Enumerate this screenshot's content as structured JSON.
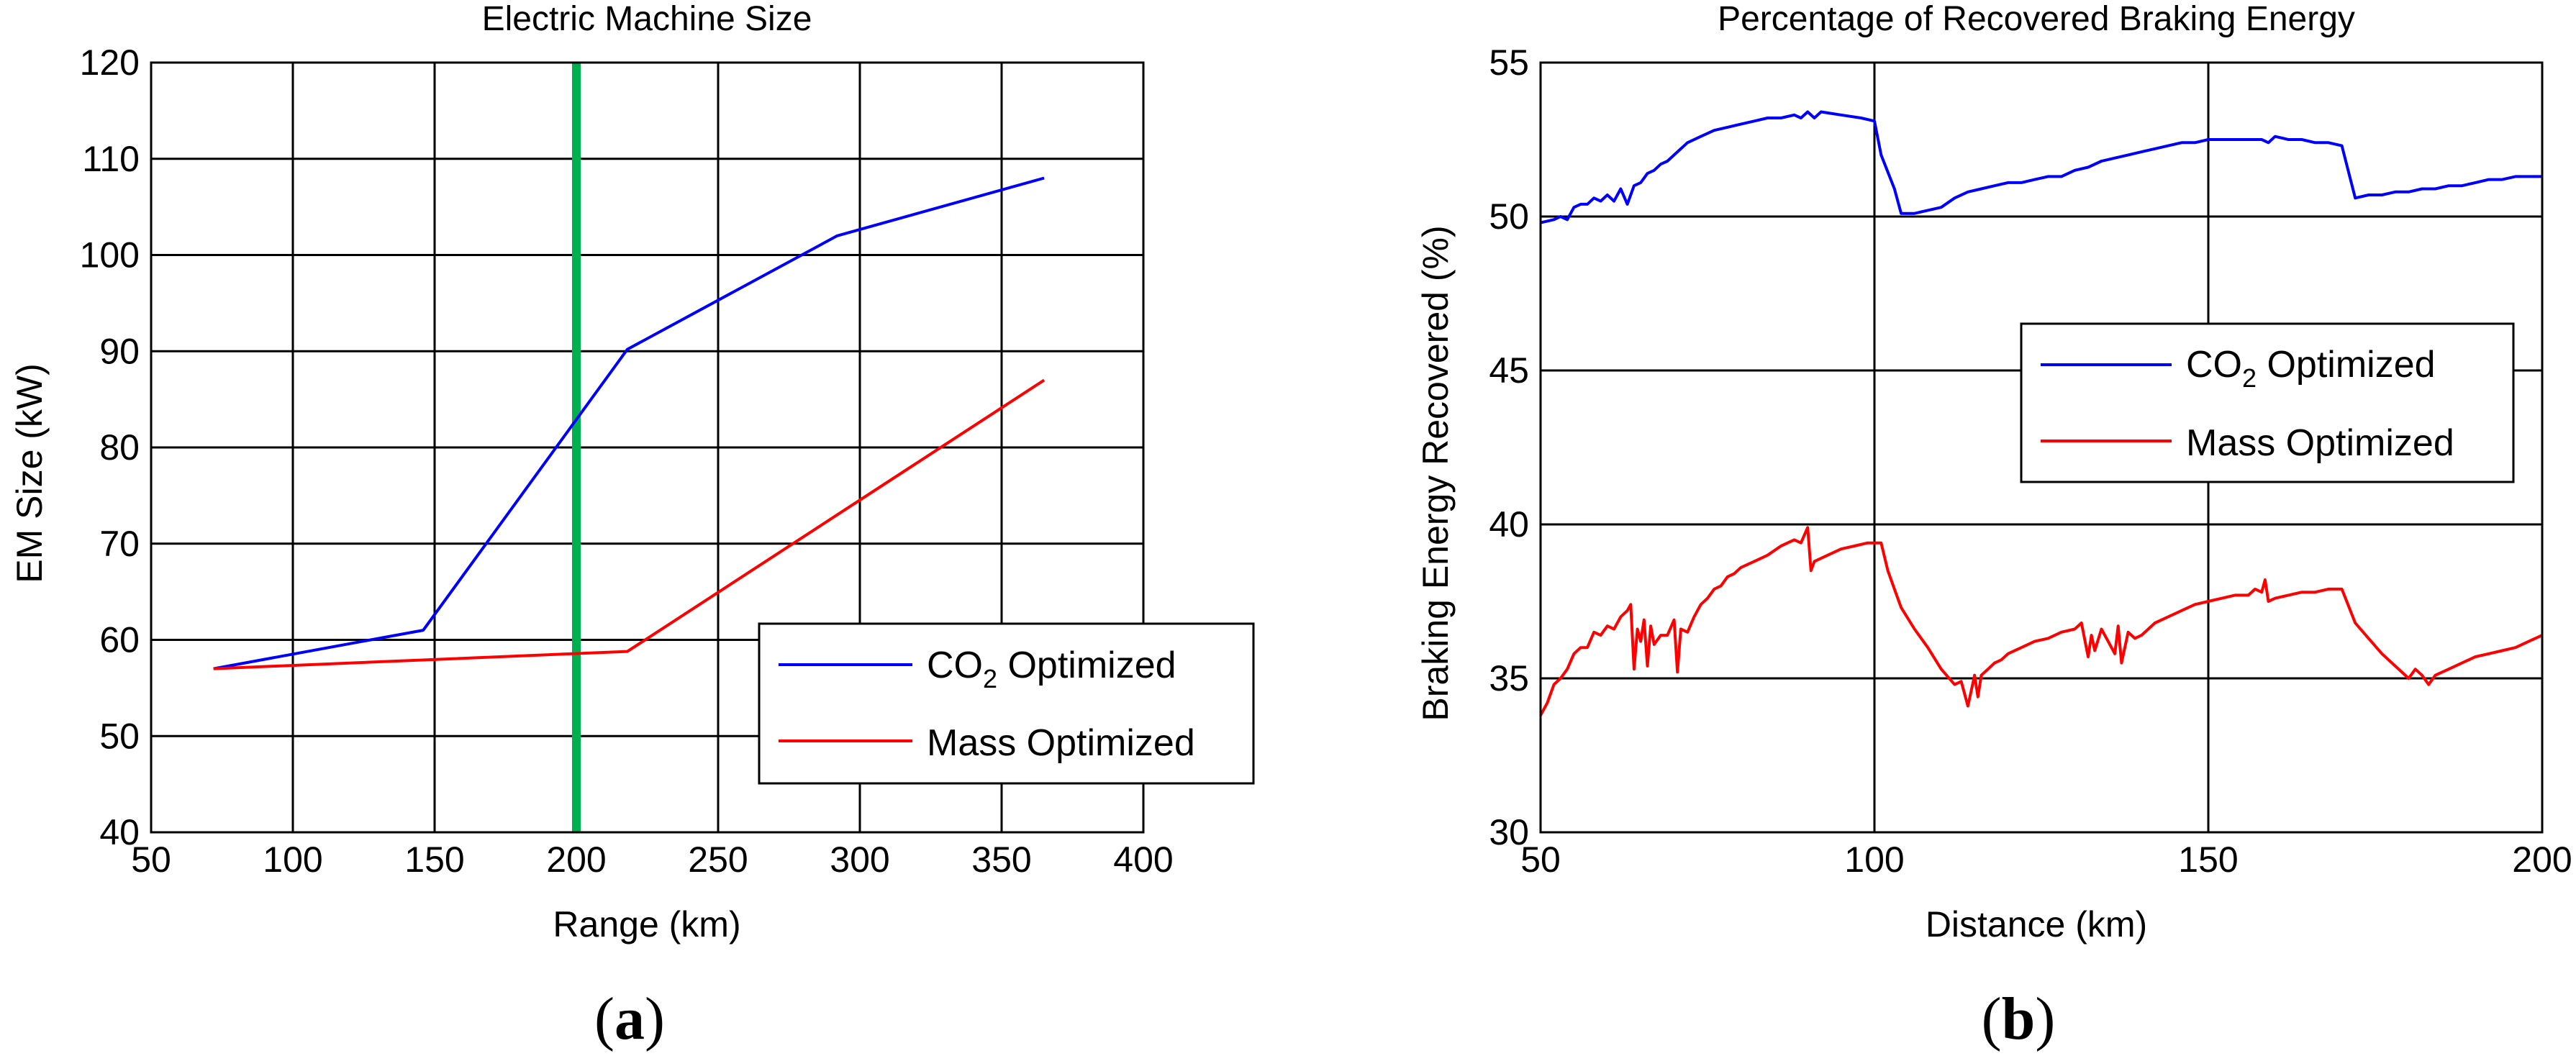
{
  "chart_data": [
    {
      "type": "line",
      "title": "Electric Machine Size",
      "xlabel": "Range (km)",
      "ylabel": "EM Size (kW)",
      "xlim": [
        50,
        400
      ],
      "ylim": [
        40,
        120
      ],
      "xticks": [
        50,
        100,
        150,
        200,
        250,
        300,
        350,
        400
      ],
      "yticks": [
        40,
        50,
        60,
        70,
        80,
        90,
        100,
        110,
        120
      ],
      "grid": true,
      "caption": {
        "open": "(",
        "letter": "a",
        "close": ")"
      },
      "legend": {
        "position": "bottom-right",
        "entries": [
          {
            "prefix": "CO",
            "subscript": "2",
            "suffix": " Optimized",
            "color": "#0000ff"
          },
          {
            "prefix": "Mass Optimized",
            "subscript": "",
            "suffix": "",
            "color": "#ff0000"
          }
        ]
      },
      "annotations": [
        {
          "type": "vertical-line",
          "x": 200,
          "color": "#00b050"
        }
      ],
      "series": [
        {
          "name": "CO2 Optimized",
          "color": "#0000ff",
          "x": [
            72,
            146,
            218,
            292,
            365
          ],
          "y": [
            57,
            61,
            90.2,
            102,
            108
          ]
        },
        {
          "name": "Mass Optimized",
          "color": "#ff0000",
          "x": [
            72,
            218,
            365
          ],
          "y": [
            57,
            58.8,
            87
          ]
        }
      ]
    },
    {
      "type": "line",
      "title": "Percentage of Recovered Braking Energy",
      "xlabel": "Distance (km)",
      "ylabel": "Braking Energy Recovered (%)",
      "xlim": [
        50,
        200
      ],
      "ylim": [
        30,
        55
      ],
      "xticks": [
        50,
        100,
        150,
        200
      ],
      "yticks": [
        30,
        35,
        40,
        45,
        50,
        55
      ],
      "grid": true,
      "caption": {
        "open": "(",
        "letter": "b",
        "close": ")"
      },
      "legend": {
        "position": "center-right",
        "entries": [
          {
            "prefix": "CO",
            "subscript": "2",
            "suffix": " Optimized",
            "color": "#0000ff"
          },
          {
            "prefix": "Mass Optimized",
            "subscript": "",
            "suffix": "",
            "color": "#ff0000"
          }
        ]
      },
      "series": [
        {
          "name": "CO2 Optimized",
          "color": "#0000ff",
          "x": [
            50,
            52,
            53,
            54,
            55,
            56,
            57,
            58,
            59,
            60,
            61,
            62,
            63,
            64,
            65,
            66,
            67,
            68,
            69,
            70,
            72,
            74,
            76,
            78,
            80,
            82,
            84,
            86,
            88,
            89,
            90,
            91,
            92,
            95,
            98,
            100,
            101,
            103,
            104,
            106,
            108,
            110,
            112,
            114,
            116,
            118,
            120,
            122,
            124,
            126,
            128,
            130,
            132,
            134,
            136,
            138,
            140,
            142,
            144,
            146,
            148,
            150,
            152,
            154,
            156,
            158,
            159,
            160,
            162,
            164,
            166,
            168,
            170,
            172,
            174,
            176,
            178,
            180,
            182,
            184,
            186,
            188,
            190,
            192,
            194,
            196,
            198,
            200
          ],
          "y": [
            49.8,
            49.9,
            50.0,
            49.9,
            50.3,
            50.4,
            50.4,
            50.6,
            50.5,
            50.7,
            50.5,
            50.9,
            50.4,
            51.0,
            51.1,
            51.4,
            51.5,
            51.7,
            51.8,
            52.0,
            52.4,
            52.6,
            52.8,
            52.9,
            53.0,
            53.1,
            53.2,
            53.2,
            53.3,
            53.2,
            53.4,
            53.2,
            53.4,
            53.3,
            53.2,
            53.1,
            52.0,
            50.9,
            50.1,
            50.1,
            50.2,
            50.3,
            50.6,
            50.8,
            50.9,
            51.0,
            51.1,
            51.1,
            51.2,
            51.3,
            51.3,
            51.5,
            51.6,
            51.8,
            51.9,
            52.0,
            52.1,
            52.2,
            52.3,
            52.4,
            52.4,
            52.5,
            52.5,
            52.5,
            52.5,
            52.5,
            52.4,
            52.6,
            52.5,
            52.5,
            52.4,
            52.4,
            52.3,
            50.6,
            50.7,
            50.7,
            50.8,
            50.8,
            50.9,
            50.9,
            51.0,
            51.0,
            51.1,
            51.2,
            51.2,
            51.3,
            51.3,
            51.3
          ]
        },
        {
          "name": "Mass Optimized",
          "color": "#ff0000",
          "x": [
            50,
            51,
            52,
            53,
            54,
            55,
            56,
            57,
            58,
            59,
            60,
            61,
            62,
            63,
            63.5,
            64,
            64.5,
            65,
            65.5,
            66,
            66.5,
            67,
            68,
            69,
            70,
            70.5,
            71,
            72,
            73,
            74,
            75,
            76,
            77,
            78,
            79,
            80,
            82,
            84,
            86,
            88,
            89,
            90,
            90.5,
            91,
            93,
            95,
            97,
            99,
            100,
            101,
            102,
            103,
            104,
            106,
            108,
            110,
            112,
            113,
            114,
            115,
            115.5,
            116,
            117,
            118,
            119,
            120,
            122,
            124,
            126,
            128,
            130,
            131,
            132,
            132.5,
            133,
            134,
            135,
            136,
            136.5,
            137,
            138,
            139,
            140,
            142,
            144,
            146,
            148,
            150,
            152,
            154,
            156,
            157,
            158,
            158.5,
            159,
            160,
            162,
            164,
            166,
            168,
            170,
            172,
            174,
            176,
            178,
            180,
            181,
            182,
            183,
            184,
            186,
            188,
            190,
            192,
            194,
            196,
            198,
            200
          ],
          "y": [
            33.8,
            34.2,
            34.8,
            35.0,
            35.3,
            35.8,
            36.0,
            36.0,
            36.5,
            36.4,
            36.7,
            36.6,
            37.0,
            37.2,
            37.4,
            35.3,
            36.6,
            36.2,
            36.9,
            35.4,
            36.7,
            36.1,
            36.4,
            36.4,
            36.9,
            35.2,
            36.6,
            36.5,
            37.0,
            37.4,
            37.6,
            37.9,
            38.0,
            38.3,
            38.4,
            38.6,
            38.8,
            39.0,
            39.3,
            39.5,
            39.4,
            39.9,
            38.5,
            38.8,
            39.0,
            39.2,
            39.3,
            39.4,
            39.4,
            39.4,
            38.5,
            37.9,
            37.3,
            36.6,
            36.0,
            35.3,
            34.8,
            34.9,
            34.1,
            35.1,
            34.4,
            35.1,
            35.3,
            35.5,
            35.6,
            35.8,
            36.0,
            36.2,
            36.3,
            36.5,
            36.6,
            36.8,
            35.7,
            36.4,
            35.9,
            36.6,
            36.2,
            35.8,
            36.7,
            35.5,
            36.5,
            36.3,
            36.4,
            36.8,
            37.0,
            37.2,
            37.4,
            37.5,
            37.6,
            37.7,
            37.7,
            37.9,
            37.8,
            38.2,
            37.5,
            37.6,
            37.7,
            37.8,
            37.8,
            37.9,
            37.9,
            36.8,
            36.3,
            35.8,
            35.4,
            35.0,
            35.3,
            35.1,
            34.8,
            35.1,
            35.3,
            35.5,
            35.7,
            35.8,
            35.9,
            36.0,
            36.2,
            36.4
          ]
        }
      ]
    }
  ]
}
